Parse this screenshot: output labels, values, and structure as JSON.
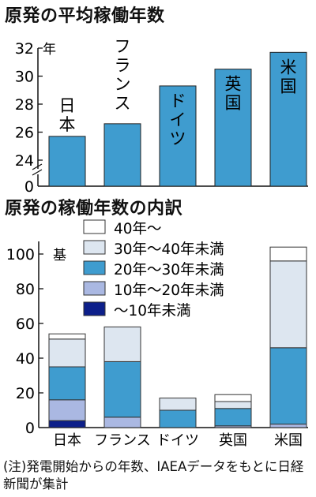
{
  "chart_data": [
    {
      "type": "bar",
      "title": "原発の平均稼働年数",
      "unit": "年",
      "categories": [
        "日本",
        "フランス",
        "ドイツ",
        "英国",
        "米国"
      ],
      "values": [
        25.7,
        26.6,
        29.3,
        30.5,
        31.7
      ],
      "ylim": [
        24,
        32
      ],
      "yticks": [
        "32",
        "30",
        "28",
        "26",
        "24",
        "0"
      ],
      "axis_break": true,
      "grid": false,
      "bar_color": "#3f9ccf"
    },
    {
      "type": "bar",
      "stacked": true,
      "title": "原発の稼働年数の内訳",
      "unit": "基",
      "categories": [
        "日本",
        "フランス",
        "ドイツ",
        "英国",
        "米国"
      ],
      "ylim": [
        0,
        105
      ],
      "yticks": [
        "100",
        "80",
        "60",
        "40",
        "20",
        "0"
      ],
      "legend_position": "top",
      "grid": false,
      "series": [
        {
          "name": "〜10年未満",
          "color": "#0d1f8a",
          "values": [
            4,
            0,
            0,
            0,
            0
          ]
        },
        {
          "name": "10年〜20年未満",
          "color": "#aab8e2",
          "values": [
            12,
            6,
            0,
            1,
            2
          ]
        },
        {
          "name": "20年〜30年未満",
          "color": "#3f9ccf",
          "values": [
            19,
            32,
            10,
            10,
            44
          ]
        },
        {
          "name": "30年〜40年未満",
          "color": "#dde6f0",
          "values": [
            16,
            20,
            7,
            4,
            50
          ]
        },
        {
          "name": "40年〜",
          "color": "#ffffff",
          "values": [
            3,
            0,
            0,
            4,
            8
          ]
        }
      ]
    }
  ],
  "note": "(注)発電開始からの年数、IAEAデータをもとに日経新聞が集計"
}
